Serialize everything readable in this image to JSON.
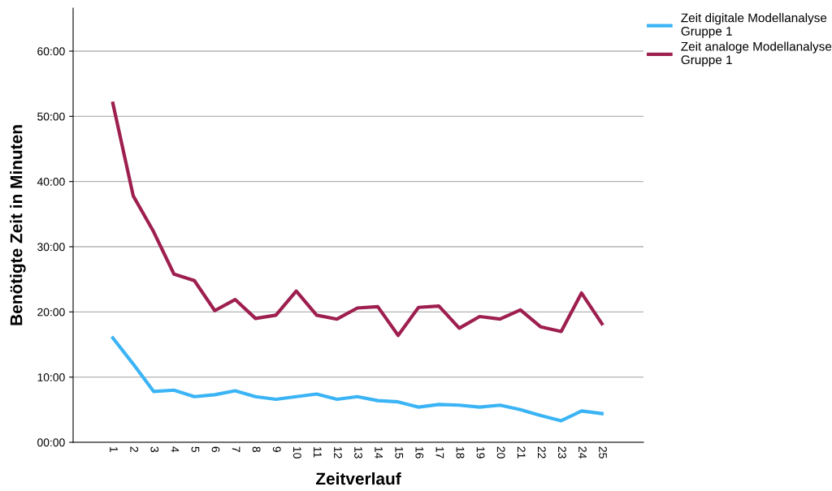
{
  "chart_data": {
    "type": "line",
    "xlabel": "Zeitverlauf",
    "ylabel": "Benötigte Zeit in Minuten",
    "categories": [
      "1",
      "2",
      "3",
      "4",
      "5",
      "6",
      "7",
      "8",
      "9",
      "10",
      "11",
      "12",
      "13",
      "14",
      "15",
      "16",
      "17",
      "18",
      "19",
      "20",
      "21",
      "22",
      "23",
      "24",
      "25"
    ],
    "series": [
      {
        "name": "Zeit digitale Modellanalyse\nGruppe 1",
        "color": "#3bb4f5",
        "values": [
          16.0,
          12.0,
          7.8,
          8.0,
          7.0,
          7.3,
          7.9,
          7.0,
          6.6,
          7.0,
          7.4,
          6.6,
          7.0,
          6.4,
          6.2,
          5.4,
          5.8,
          5.7,
          5.4,
          5.7,
          5.0,
          4.1,
          3.3,
          4.8,
          4.4
        ]
      },
      {
        "name": "Zeit analoge Modellanalyse\nGruppe 1",
        "color": "#9e1f4f",
        "values": [
          52.0,
          37.8,
          32.3,
          25.8,
          24.8,
          20.2,
          21.9,
          19.0,
          19.5,
          23.2,
          19.5,
          18.9,
          20.6,
          20.8,
          16.4,
          20.7,
          20.9,
          17.5,
          19.3,
          18.9,
          20.3,
          17.7,
          17.0,
          22.9,
          18.2
        ]
      }
    ],
    "ylim": [
      0,
      66.6
    ],
    "yticks": [
      {
        "value": 0,
        "label": "00:00"
      },
      {
        "value": 10,
        "label": "10:00"
      },
      {
        "value": 20,
        "label": "20:00"
      },
      {
        "value": 30,
        "label": "30:00"
      },
      {
        "value": 40,
        "label": "40:00"
      },
      {
        "value": 50,
        "label": "50:00"
      },
      {
        "value": 60,
        "label": "60:00"
      }
    ],
    "grid": "y",
    "legend": "top right",
    "marker": "none",
    "line_style": "solid"
  }
}
